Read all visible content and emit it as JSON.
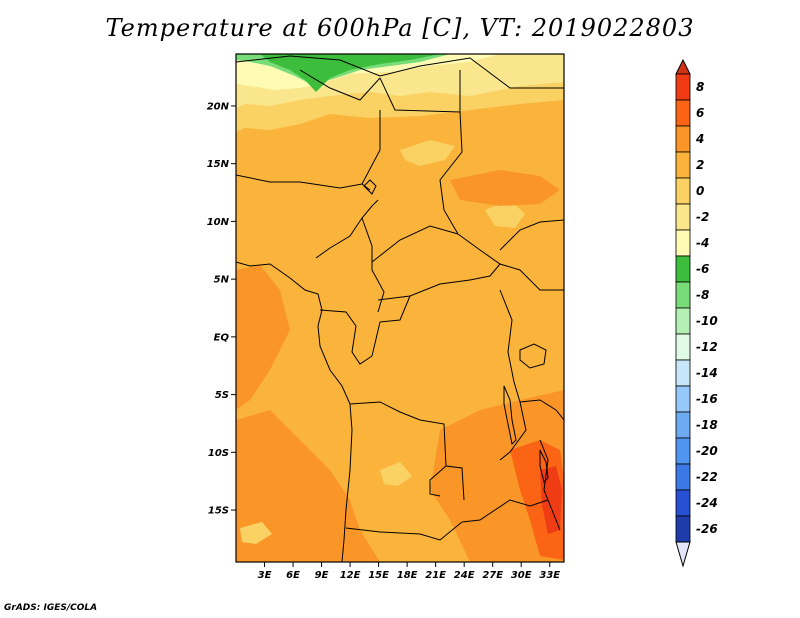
{
  "title": "Temperature at 600hPa [C], VT: 2019022803",
  "credit": "GrADS: IGES/COLA",
  "map": {
    "lat_labels": [
      {
        "label": "20N",
        "lat": 20
      },
      {
        "label": "15N",
        "lat": 15
      },
      {
        "label": "10N",
        "lat": 10
      },
      {
        "label": "5N",
        "lat": 5
      },
      {
        "label": "EQ",
        "lat": 0
      },
      {
        "label": "5S",
        "lat": -5
      },
      {
        "label": "10S",
        "lat": -10
      },
      {
        "label": "15S",
        "lat": -15
      }
    ],
    "lon_labels": [
      {
        "label": "3E",
        "lon": 3
      },
      {
        "label": "6E",
        "lon": 6
      },
      {
        "label": "9E",
        "lon": 9
      },
      {
        "label": "12E",
        "lon": 12
      },
      {
        "label": "15E",
        "lon": 15
      },
      {
        "label": "18E",
        "lon": 18
      },
      {
        "label": "21E",
        "lon": 21
      },
      {
        "label": "24E",
        "lon": 24
      },
      {
        "label": "27E",
        "lon": 27
      },
      {
        "label": "30E",
        "lon": 30
      },
      {
        "label": "33E",
        "lon": 33
      }
    ],
    "lon_range": [
      0,
      34.5
    ],
    "lat_range": [
      -19.5,
      24.5
    ]
  },
  "colorbar": {
    "levels": [
      "8",
      "6",
      "4",
      "2",
      "0",
      "-2",
      "-4",
      "-6",
      "-8",
      "-10",
      "-12",
      "-14",
      "-16",
      "-18",
      "-20",
      "-22",
      "-24",
      "-26"
    ],
    "colors": [
      "#f03c14",
      "#fa6414",
      "#fa9628",
      "#fab43c",
      "#fad264",
      "#fae68c",
      "#fffab4",
      "#3cbe3c",
      "#78dc78",
      "#b4f0b4",
      "#e1fae6",
      "#c8e6fa",
      "#96c8fa",
      "#6eaaf0",
      "#5096f0",
      "#3c78e6",
      "#2850d2",
      "#1e3caa",
      "#0a1464"
    ],
    "top_color": "#d23214",
    "bottom_color": "#e1e6fa"
  }
}
